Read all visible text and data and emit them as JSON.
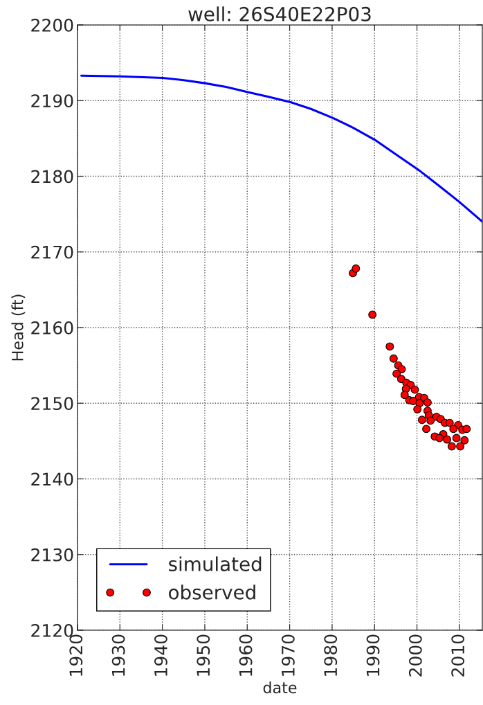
{
  "chart_data": {
    "type": "line",
    "title": "well: 26S40E22P03",
    "xlabel": "date",
    "ylabel": "Head (ft)",
    "xlim": [
      1920,
      2015.4
    ],
    "xticks": [
      1920,
      1930,
      1940,
      1950,
      1960,
      1970,
      1980,
      1990,
      2000,
      2010
    ],
    "ylim": [
      2120,
      2200
    ],
    "yticks": [
      2120,
      2130,
      2140,
      2150,
      2160,
      2170,
      2180,
      2190,
      2200
    ],
    "grid": true,
    "legend": "bottom left",
    "series": [
      {
        "name": "simulated",
        "color": "#0000ff",
        "line_style": "solid",
        "marker": "none",
        "x": [
          1920.9,
          1929.8,
          1940.1,
          1945.0,
          1950.0,
          1955.0,
          1960.3,
          1965.0,
          1970.2,
          1975.0,
          1980.2,
          1985.0,
          1990.4,
          1995.0,
          2000.7,
          2005.3,
          2010.0,
          2015.4
        ],
        "values": [
          2193.3,
          2193.2,
          2193.0,
          2192.7,
          2192.3,
          2191.8,
          2191.1,
          2190.5,
          2189.8,
          2188.9,
          2187.7,
          2186.4,
          2184.7,
          2182.9,
          2180.7,
          2178.7,
          2176.6,
          2174.0
        ]
      },
      {
        "name": "observed",
        "type": "scatter",
        "color": "#ff0000",
        "marker": "circle",
        "x": [
          1984.9,
          1985.6,
          1989.5,
          1993.6,
          1994.5,
          1995.6,
          1996.4,
          1995.2,
          1996.3,
          1997.5,
          1998.5,
          1997.4,
          1999.5,
          1997.1,
          2000.5,
          2001.7,
          1998.2,
          1999.1,
          2002.5,
          2000.6,
          2000.1,
          2002.5,
          2002.8,
          2004.6,
          2005.6,
          2001.2,
          2003.2,
          2006.6,
          2007.7,
          2009.7,
          2008.6,
          2010.7,
          2011.7,
          2002.2,
          2006.2,
          2004.2,
          2005.3,
          2007.1,
          2009.3,
          2011.2,
          2008.2,
          2010.2
        ],
        "values": [
          2167.2,
          2167.8,
          2161.7,
          2157.5,
          2155.9,
          2155.0,
          2154.5,
          2153.9,
          2153.2,
          2152.7,
          2152.4,
          2151.9,
          2151.8,
          2151.1,
          2150.8,
          2150.7,
          2150.4,
          2150.3,
          2150.1,
          2150.0,
          2149.2,
          2149.0,
          2148.4,
          2148.2,
          2147.9,
          2147.8,
          2147.7,
          2147.4,
          2147.4,
          2147.1,
          2146.6,
          2146.5,
          2146.6,
          2146.6,
          2145.9,
          2145.6,
          2145.4,
          2145.2,
          2145.4,
          2145.1,
          2144.3,
          2144.3
        ]
      }
    ]
  }
}
